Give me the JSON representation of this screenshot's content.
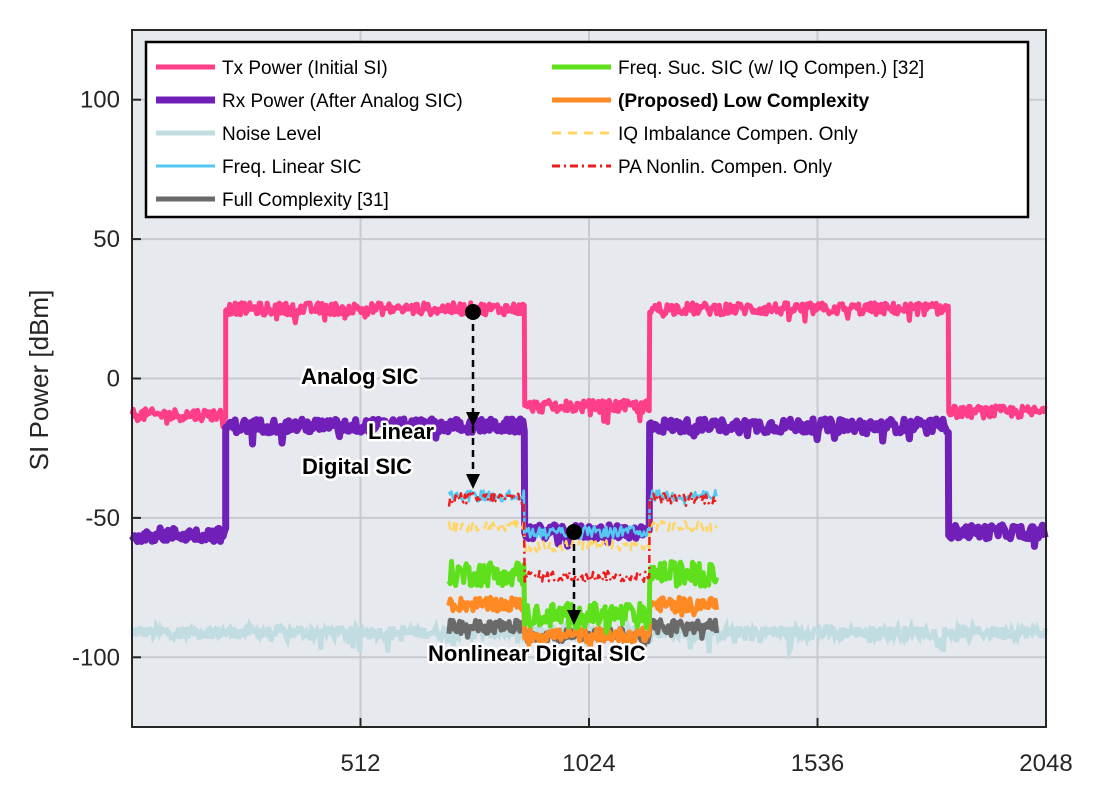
{
  "chart_data": {
    "type": "line",
    "ylabel": "SI Power [dBm]",
    "xlabel": "",
    "xlim": [
      0,
      2048
    ],
    "ylim": [
      -125,
      125
    ],
    "xticks": [
      512,
      1024,
      1536,
      2048
    ],
    "yticks": [
      -100,
      -50,
      0,
      50,
      100
    ],
    "grid": true,
    "legend_position": "top",
    "series": [
      {
        "name": "Tx Power (Initial SI)",
        "color": "#ff3e8a",
        "style": "solid",
        "width": 5,
        "segments": [
          {
            "x": [
              0,
              210
            ],
            "y": -13
          },
          {
            "x": 210,
            "x_end": 880,
            "y": 25
          },
          {
            "x": 880,
            "x_end": 1160,
            "y": -10
          },
          {
            "x": 1160,
            "x_end": 1830,
            "y": 25
          },
          {
            "x": 1830,
            "x_end": 2048,
            "y": -12
          }
        ]
      },
      {
        "name": "Rx Power (After Analog SIC)",
        "color": "#7020b8",
        "style": "solid",
        "width": 7,
        "segments": [
          {
            "x": [
              0,
              210
            ],
            "y": -56
          },
          {
            "x": 210,
            "x_end": 880,
            "y": -17
          },
          {
            "x": 880,
            "x_end": 1160,
            "y": -55
          },
          {
            "x": 1160,
            "x_end": 1830,
            "y": -17
          },
          {
            "x": 1830,
            "x_end": 2048,
            "y": -55
          }
        ]
      },
      {
        "name": "Noise Level",
        "color": "#c2dde2",
        "style": "solid",
        "width": 5,
        "level": -91
      },
      {
        "name": "Freq. Linear SIC",
        "color": "#54c8f0",
        "style": "solid",
        "width": 2.5,
        "segments": [
          {
            "x": [
              710,
              880
            ],
            "y": -42
          },
          {
            "x": [
              880,
              1160
            ],
            "y": -55
          },
          {
            "x": [
              1160,
              1310
            ],
            "y": -42
          }
        ]
      },
      {
        "name": "Full Complexity [31]",
        "color": "#6a6a6a",
        "style": "solid",
        "width": 5,
        "segments": [
          {
            "x": [
              710,
              880
            ],
            "y": -89
          },
          {
            "x": [
              880,
              1160
            ],
            "y": -92
          },
          {
            "x": [
              1160,
              1310
            ],
            "y": -89
          }
        ]
      },
      {
        "name": "Freq. Suc. SIC (w/ IQ Compen.) [32]",
        "color": "#5ee01c",
        "style": "solid",
        "width": 5,
        "segments": [
          {
            "x": [
              710,
              880
            ],
            "y": -70
          },
          {
            "x": [
              880,
              1160
            ],
            "y": -85
          },
          {
            "x": [
              1160,
              1310
            ],
            "y": -70
          }
        ]
      },
      {
        "name": "(Proposed) Low Complexity",
        "color": "#ff8a24",
        "style": "solid",
        "width": 5,
        "bold": true,
        "segments": [
          {
            "x": [
              710,
              880
            ],
            "y": -81
          },
          {
            "x": [
              880,
              1160
            ],
            "y": -92
          },
          {
            "x": [
              1160,
              1310
            ],
            "y": -81
          }
        ]
      },
      {
        "name": "IQ Imbalance Compen. Only",
        "color": "#ffd566",
        "style": "dashed",
        "width": 2.5,
        "segments": [
          {
            "x": [
              710,
              880
            ],
            "y": -53
          },
          {
            "x": [
              880,
              1160
            ],
            "y": -60
          },
          {
            "x": [
              1160,
              1310
            ],
            "y": -53
          }
        ]
      },
      {
        "name": "PA Nonlin. Compen. Only",
        "color": "#ee1c1c",
        "style": "dashdot",
        "width": 2.5,
        "segments": [
          {
            "x": [
              710,
              880
            ],
            "y": -43
          },
          {
            "x": [
              880,
              1160
            ],
            "y": -71
          },
          {
            "x": [
              1160,
              1310
            ],
            "y": -43
          }
        ]
      }
    ],
    "annotations": [
      {
        "text": "Analog SIC",
        "arrow_x": 773,
        "arrow_from": 23,
        "arrow_to": -17
      },
      {
        "text_lines": [
          "Linear",
          "Digital SIC"
        ],
        "arrow_x": 773,
        "arrow_from": -17,
        "arrow_to": -40
      },
      {
        "text": "Nonlinear Digital SIC",
        "arrow_x": 988,
        "arrow_from": -55,
        "arrow_to": -90
      }
    ]
  }
}
